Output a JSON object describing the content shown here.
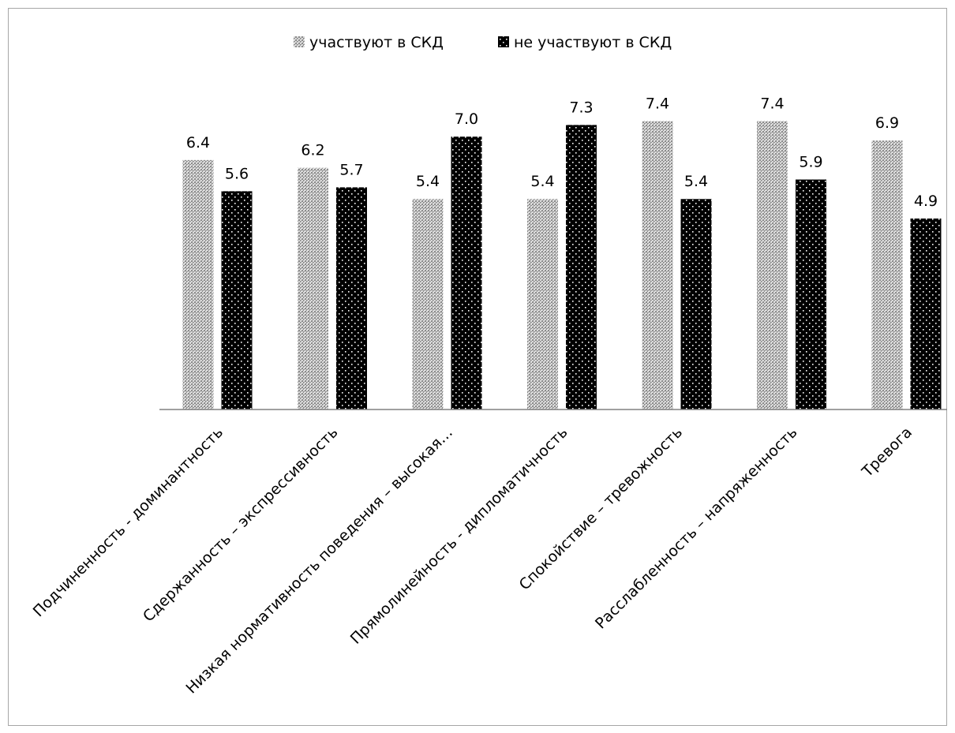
{
  "chart_data": {
    "type": "bar",
    "categories": [
      "Подчиненность - доминантность",
      "Сдержанность – экспрессивность",
      "Низкая нормативность поведения – высокая…",
      "Прямолинейность - дипломатичность",
      "Спокойствие – тревожность",
      "Расслабленность – напряженность",
      "Тревога"
    ],
    "series": [
      {
        "name": "участвуют в СКД",
        "values": [
          6.4,
          6.2,
          5.4,
          5.4,
          7.4,
          7.4,
          6.9
        ],
        "labels": [
          "6.4",
          "6.2",
          "5.4",
          "5.4",
          "7.4",
          "7.4",
          "6.9"
        ],
        "pattern": "checker-gray"
      },
      {
        "name": "не участвуют в СКД",
        "values": [
          5.6,
          5.7,
          7.0,
          7.3,
          5.4,
          5.9,
          4.9
        ],
        "labels": [
          "5.6",
          "5.7",
          "7.0",
          "7.3",
          "5.4",
          "5.9",
          "4.9"
        ],
        "pattern": "dotted-black"
      }
    ],
    "title": "",
    "xlabel": "",
    "ylabel": "",
    "ylim": [
      0,
      8
    ],
    "grid": false,
    "legend": "top-center",
    "axis_color": "#808080"
  }
}
